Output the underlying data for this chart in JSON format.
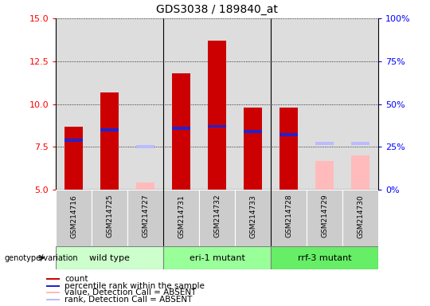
{
  "title": "GDS3038 / 189840_at",
  "samples": [
    "GSM214716",
    "GSM214725",
    "GSM214727",
    "GSM214731",
    "GSM214732",
    "GSM214733",
    "GSM214728",
    "GSM214729",
    "GSM214730"
  ],
  "count_values": [
    8.7,
    10.7,
    null,
    11.8,
    13.7,
    9.8,
    9.8,
    null,
    null
  ],
  "rank_values": [
    7.9,
    8.5,
    null,
    8.6,
    8.7,
    8.4,
    8.2,
    null,
    null
  ],
  "absent_count": [
    null,
    null,
    5.4,
    null,
    null,
    null,
    null,
    6.7,
    7.0
  ],
  "absent_rank": [
    null,
    null,
    7.5,
    null,
    null,
    null,
    null,
    7.7,
    7.7
  ],
  "ylim_left": [
    5,
    15
  ],
  "ylim_right": [
    0,
    100
  ],
  "yticks_left": [
    5,
    7.5,
    10,
    12.5,
    15
  ],
  "yticks_right": [
    0,
    25,
    50,
    75,
    100
  ],
  "groups": [
    {
      "label": "wild type",
      "start": 0,
      "end": 3
    },
    {
      "label": "eri-1 mutant",
      "start": 3,
      "end": 6
    },
    {
      "label": "rrf-3 mutant",
      "start": 6,
      "end": 9
    }
  ],
  "bar_color_count": "#cc0000",
  "bar_color_rank": "#2222cc",
  "bar_color_absent_count": "#ffbbbb",
  "bar_color_absent_rank": "#bbbbff",
  "bar_width": 0.5,
  "plot_bg_color": "#dddddd",
  "cell_bg_color": "#cccccc",
  "group_colors": [
    "#bbffbb",
    "#66ff66",
    "#33cc33"
  ],
  "genotype_label": "genotype/variation",
  "legend_items": [
    {
      "label": "count",
      "color": "#cc0000"
    },
    {
      "label": "percentile rank within the sample",
      "color": "#2222cc"
    },
    {
      "label": "value, Detection Call = ABSENT",
      "color": "#ffbbbb"
    },
    {
      "label": "rank, Detection Call = ABSENT",
      "color": "#bbbbff"
    }
  ]
}
